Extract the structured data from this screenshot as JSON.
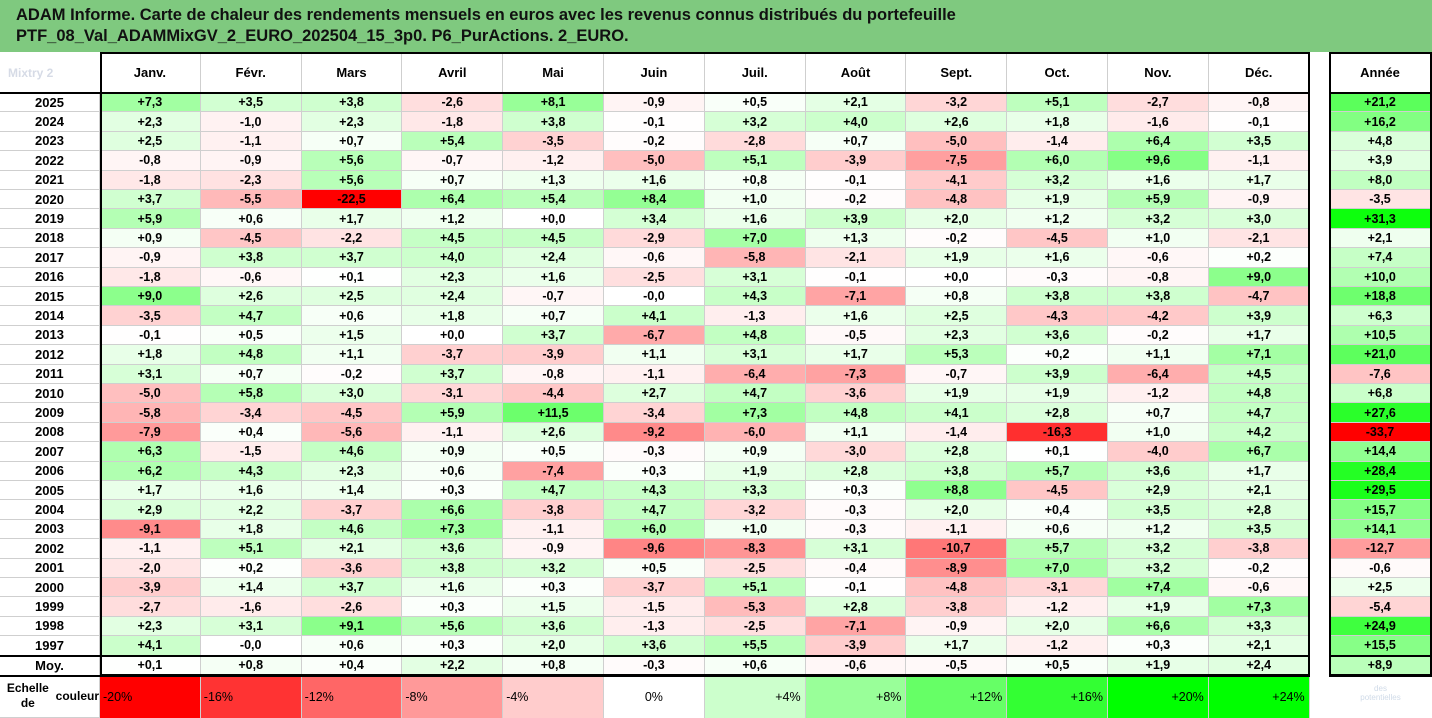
{
  "title": {
    "line1": "ADAM Informe. Carte de chaleur des rendements mensuels en euros avec les revenus connus distribués du portefeuille",
    "line2": "PTF_08_Val_ADAMMixGV_2_EURO_202504_15_3p0. P6_PurActions. 2_EURO."
  },
  "corner_label": "Mixtry 2",
  "chart_data": {
    "type": "heatmap",
    "title": "ADAM Informe. Carte de chaleur des rendements mensuels en euros avec les revenus connus distribués du portefeuille PTF_08_Val_ADAMMixGV_2_EURO_202504_15_3p0. P6_PurActions. 2_EURO.",
    "months": [
      "Janv.",
      "Févr.",
      "Mars",
      "Avril",
      "Mai",
      "Juin",
      "Juil.",
      "Août",
      "Sept.",
      "Oct.",
      "Nov.",
      "Déc."
    ],
    "year_header": "Année",
    "rows": [
      {
        "year": "2025",
        "values": [
          "+7,3",
          "+3,5",
          "+3,8",
          "-2,6",
          "+8,1",
          "-0,9",
          "+0,5",
          "+2,1",
          "-3,2",
          "+5,1",
          "-2,7",
          "-0,8"
        ],
        "annual": "+21,2"
      },
      {
        "year": "2024",
        "values": [
          "+2,3",
          "-1,0",
          "+2,3",
          "-1,8",
          "+3,8",
          "-0,1",
          "+3,2",
          "+4,0",
          "+2,6",
          "+1,8",
          "-1,6",
          "-0,1"
        ],
        "annual": "+16,2"
      },
      {
        "year": "2023",
        "values": [
          "+2,5",
          "-1,1",
          "+0,7",
          "+5,4",
          "-3,5",
          "-0,2",
          "-2,8",
          "+0,7",
          "-5,0",
          "-1,4",
          "+6,4",
          "+3,5"
        ],
        "annual": "+4,8"
      },
      {
        "year": "2022",
        "values": [
          "-0,8",
          "-0,9",
          "+5,6",
          "-0,7",
          "-1,2",
          "-5,0",
          "+5,1",
          "-3,9",
          "-7,5",
          "+6,0",
          "+9,6",
          "-1,1"
        ],
        "annual": "+3,9"
      },
      {
        "year": "2021",
        "values": [
          "-1,8",
          "-2,3",
          "+5,6",
          "+0,7",
          "+1,3",
          "+1,6",
          "+0,8",
          "-0,1",
          "-4,1",
          "+3,2",
          "+1,6",
          "+1,7"
        ],
        "annual": "+8,0"
      },
      {
        "year": "2020",
        "values": [
          "+3,7",
          "-5,5",
          "-22,5",
          "+6,4",
          "+5,4",
          "+8,4",
          "+1,0",
          "-0,2",
          "-4,8",
          "+1,9",
          "+5,9",
          "-0,9"
        ],
        "annual": "-3,5"
      },
      {
        "year": "2019",
        "values": [
          "+5,9",
          "+0,6",
          "+1,7",
          "+1,2",
          "+0,0",
          "+3,4",
          "+1,6",
          "+3,9",
          "+2,0",
          "+1,2",
          "+3,2",
          "+3,0"
        ],
        "annual": "+31,3"
      },
      {
        "year": "2018",
        "values": [
          "+0,9",
          "-4,5",
          "-2,2",
          "+4,5",
          "+4,5",
          "-2,9",
          "+7,0",
          "+1,3",
          "-0,2",
          "-4,5",
          "+1,0",
          "-2,1"
        ],
        "annual": "+2,1"
      },
      {
        "year": "2017",
        "values": [
          "-0,9",
          "+3,8",
          "+3,7",
          "+4,0",
          "+2,4",
          "-0,6",
          "-5,8",
          "-2,1",
          "+1,9",
          "+1,6",
          "-0,6",
          "+0,2"
        ],
        "annual": "+7,4"
      },
      {
        "year": "2016",
        "values": [
          "-1,8",
          "-0,6",
          "+0,1",
          "+2,3",
          "+1,6",
          "-2,5",
          "+3,1",
          "-0,1",
          "+0,0",
          "-0,3",
          "-0,8",
          "+9,0"
        ],
        "annual": "+10,0"
      },
      {
        "year": "2015",
        "values": [
          "+9,0",
          "+2,6",
          "+2,5",
          "+2,4",
          "-0,7",
          "-0,0",
          "+4,3",
          "-7,1",
          "+0,8",
          "+3,8",
          "+3,8",
          "-4,7"
        ],
        "annual": "+18,8"
      },
      {
        "year": "2014",
        "values": [
          "-3,5",
          "+4,7",
          "+0,6",
          "+1,8",
          "+0,7",
          "+4,1",
          "-1,3",
          "+1,6",
          "+2,5",
          "-4,3",
          "-4,2",
          "+3,9"
        ],
        "annual": "+6,3"
      },
      {
        "year": "2013",
        "values": [
          "-0,1",
          "+0,5",
          "+1,5",
          "+0,0",
          "+3,7",
          "-6,7",
          "+4,8",
          "-0,5",
          "+2,3",
          "+3,6",
          "-0,2",
          "+1,7"
        ],
        "annual": "+10,5"
      },
      {
        "year": "2012",
        "values": [
          "+1,8",
          "+4,8",
          "+1,1",
          "-3,7",
          "-3,9",
          "+1,1",
          "+3,1",
          "+1,7",
          "+5,3",
          "+0,2",
          "+1,1",
          "+7,1"
        ],
        "annual": "+21,0"
      },
      {
        "year": "2011",
        "values": [
          "+3,1",
          "+0,7",
          "-0,2",
          "+3,7",
          "-0,8",
          "-1,1",
          "-6,4",
          "-7,3",
          "-0,7",
          "+3,9",
          "-6,4",
          "+4,5"
        ],
        "annual": "-7,6"
      },
      {
        "year": "2010",
        "values": [
          "-5,0",
          "+5,8",
          "+3,0",
          "-3,1",
          "-4,4",
          "+2,7",
          "+4,7",
          "-3,6",
          "+1,9",
          "+1,9",
          "-1,2",
          "+4,8"
        ],
        "annual": "+6,8"
      },
      {
        "year": "2009",
        "values": [
          "-5,8",
          "-3,4",
          "-4,5",
          "+5,9",
          "+11,5",
          "-3,4",
          "+7,3",
          "+4,8",
          "+4,1",
          "+2,8",
          "+0,7",
          "+4,7"
        ],
        "annual": "+27,6"
      },
      {
        "year": "2008",
        "values": [
          "-7,9",
          "+0,4",
          "-5,6",
          "-1,1",
          "+2,6",
          "-9,2",
          "-6,0",
          "+1,1",
          "-1,4",
          "-16,3",
          "+1,0",
          "+4,2"
        ],
        "annual": "-33,7"
      },
      {
        "year": "2007",
        "values": [
          "+6,3",
          "-1,5",
          "+4,6",
          "+0,9",
          "+0,5",
          "-0,3",
          "+0,9",
          "-3,0",
          "+2,8",
          "+0,1",
          "-4,0",
          "+6,7"
        ],
        "annual": "+14,4"
      },
      {
        "year": "2006",
        "values": [
          "+6,2",
          "+4,3",
          "+2,3",
          "+0,6",
          "-7,4",
          "+0,3",
          "+1,9",
          "+2,8",
          "+3,8",
          "+5,7",
          "+3,6",
          "+1,7"
        ],
        "annual": "+28,4"
      },
      {
        "year": "2005",
        "values": [
          "+1,7",
          "+1,6",
          "+1,4",
          "+0,3",
          "+4,7",
          "+4,3",
          "+3,3",
          "+0,3",
          "+8,8",
          "-4,5",
          "+2,9",
          "+2,1"
        ],
        "annual": "+29,5"
      },
      {
        "year": "2004",
        "values": [
          "+2,9",
          "+2,2",
          "-3,7",
          "+6,6",
          "-3,8",
          "+4,7",
          "-3,2",
          "-0,3",
          "+2,0",
          "+0,4",
          "+3,5",
          "+2,8"
        ],
        "annual": "+15,7"
      },
      {
        "year": "2003",
        "values": [
          "-9,1",
          "+1,8",
          "+4,6",
          "+7,3",
          "-1,1",
          "+6,0",
          "+1,0",
          "-0,3",
          "-1,1",
          "+0,6",
          "+1,2",
          "+3,5"
        ],
        "annual": "+14,1"
      },
      {
        "year": "2002",
        "values": [
          "-1,1",
          "+5,1",
          "+2,1",
          "+3,6",
          "-0,9",
          "-9,6",
          "-8,3",
          "+3,1",
          "-10,7",
          "+5,7",
          "+3,2",
          "-3,8"
        ],
        "annual": "-12,7"
      },
      {
        "year": "2001",
        "values": [
          "-2,0",
          "+0,2",
          "-3,6",
          "+3,8",
          "+3,2",
          "+0,5",
          "-2,5",
          "-0,4",
          "-8,9",
          "+7,0",
          "+3,2",
          "-0,2"
        ],
        "annual": "-0,6"
      },
      {
        "year": "2000",
        "values": [
          "-3,9",
          "+1,4",
          "+3,7",
          "+1,6",
          "+0,3",
          "-3,7",
          "+5,1",
          "-0,1",
          "-4,8",
          "-3,1",
          "+7,4",
          "-0,6"
        ],
        "annual": "+2,5"
      },
      {
        "year": "1999",
        "values": [
          "-2,7",
          "-1,6",
          "-2,6",
          "+0,3",
          "+1,5",
          "-1,5",
          "-5,3",
          "+2,8",
          "-3,8",
          "-1,2",
          "+1,9",
          "+7,3"
        ],
        "annual": "-5,4"
      },
      {
        "year": "1998",
        "values": [
          "+2,3",
          "+3,1",
          "+9,1",
          "+5,6",
          "+3,6",
          "-1,3",
          "-2,5",
          "-7,1",
          "-0,9",
          "+2,0",
          "+6,6",
          "+3,3"
        ],
        "annual": "+24,9"
      },
      {
        "year": "1997",
        "values": [
          "+4,1",
          "-0,0",
          "+0,6",
          "+0,3",
          "+2,0",
          "+3,6",
          "+5,5",
          "-3,9",
          "+1,7",
          "-1,2",
          "+0,3",
          "+2,1"
        ],
        "annual": "+15,5"
      }
    ],
    "average": {
      "label": "Moy.",
      "values": [
        "+0,1",
        "+0,8",
        "+0,4",
        "+2,2",
        "+0,8",
        "-0,3",
        "+0,6",
        "-0,6",
        "-0,5",
        "+0,5",
        "+1,9",
        "+2,4"
      ],
      "annual": "+8,9"
    },
    "color_scale": {
      "label_line1": "Echelle de",
      "label_line2": "couleur",
      "stops": [
        "-20%",
        "-16%",
        "-12%",
        "-8%",
        "-4%",
        "0%",
        "+4%",
        "+8%",
        "+12%",
        "+16%",
        "+20%",
        "+24%"
      ],
      "negative_color": "#ff0000",
      "neutral_color": "#ffffff",
      "positive_color": "#00ff00",
      "monthly_saturation": 20,
      "annual_saturation": 33
    }
  },
  "logo_text": {
    "line1": "des",
    "line2": "potentielles"
  }
}
